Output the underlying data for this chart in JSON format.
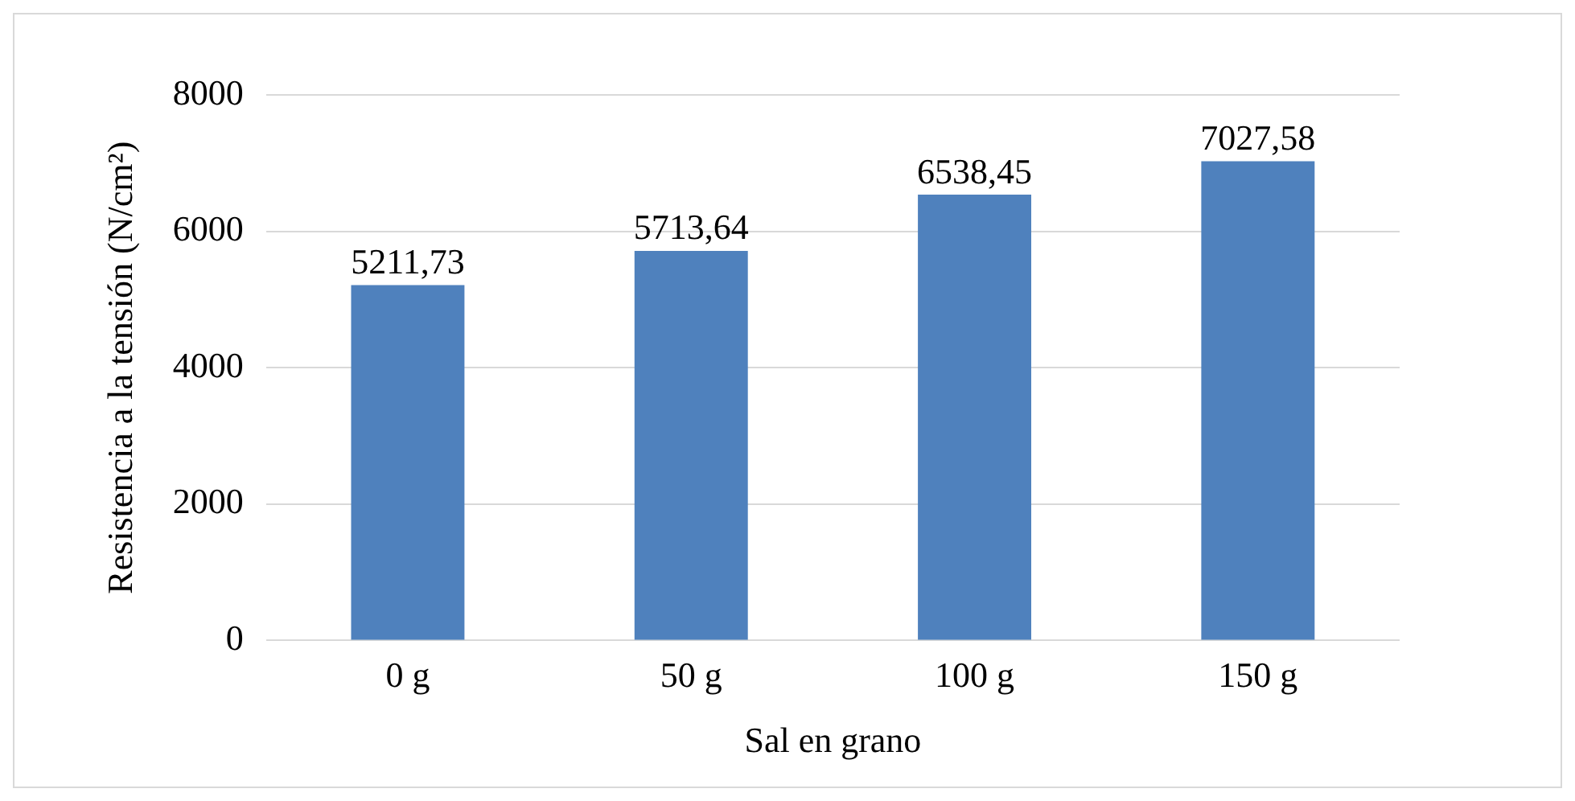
{
  "chart_data": {
    "type": "bar",
    "xlabel": "Sal en grano",
    "ylabel": "Resistencia a la tensión (N/cm²)",
    "categories": [
      "0 g",
      "50 g",
      "100 g",
      "150 g"
    ],
    "values": [
      5211.73,
      5713.64,
      6538.45,
      7027.58
    ],
    "value_labels": [
      "5211,73",
      "5713,64",
      "6538,45",
      "7027,58"
    ],
    "color": "#4f81bd",
    "ylim": [
      0,
      8000
    ],
    "yticks": [
      0,
      2000,
      4000,
      6000,
      8000
    ],
    "grid": "y"
  }
}
